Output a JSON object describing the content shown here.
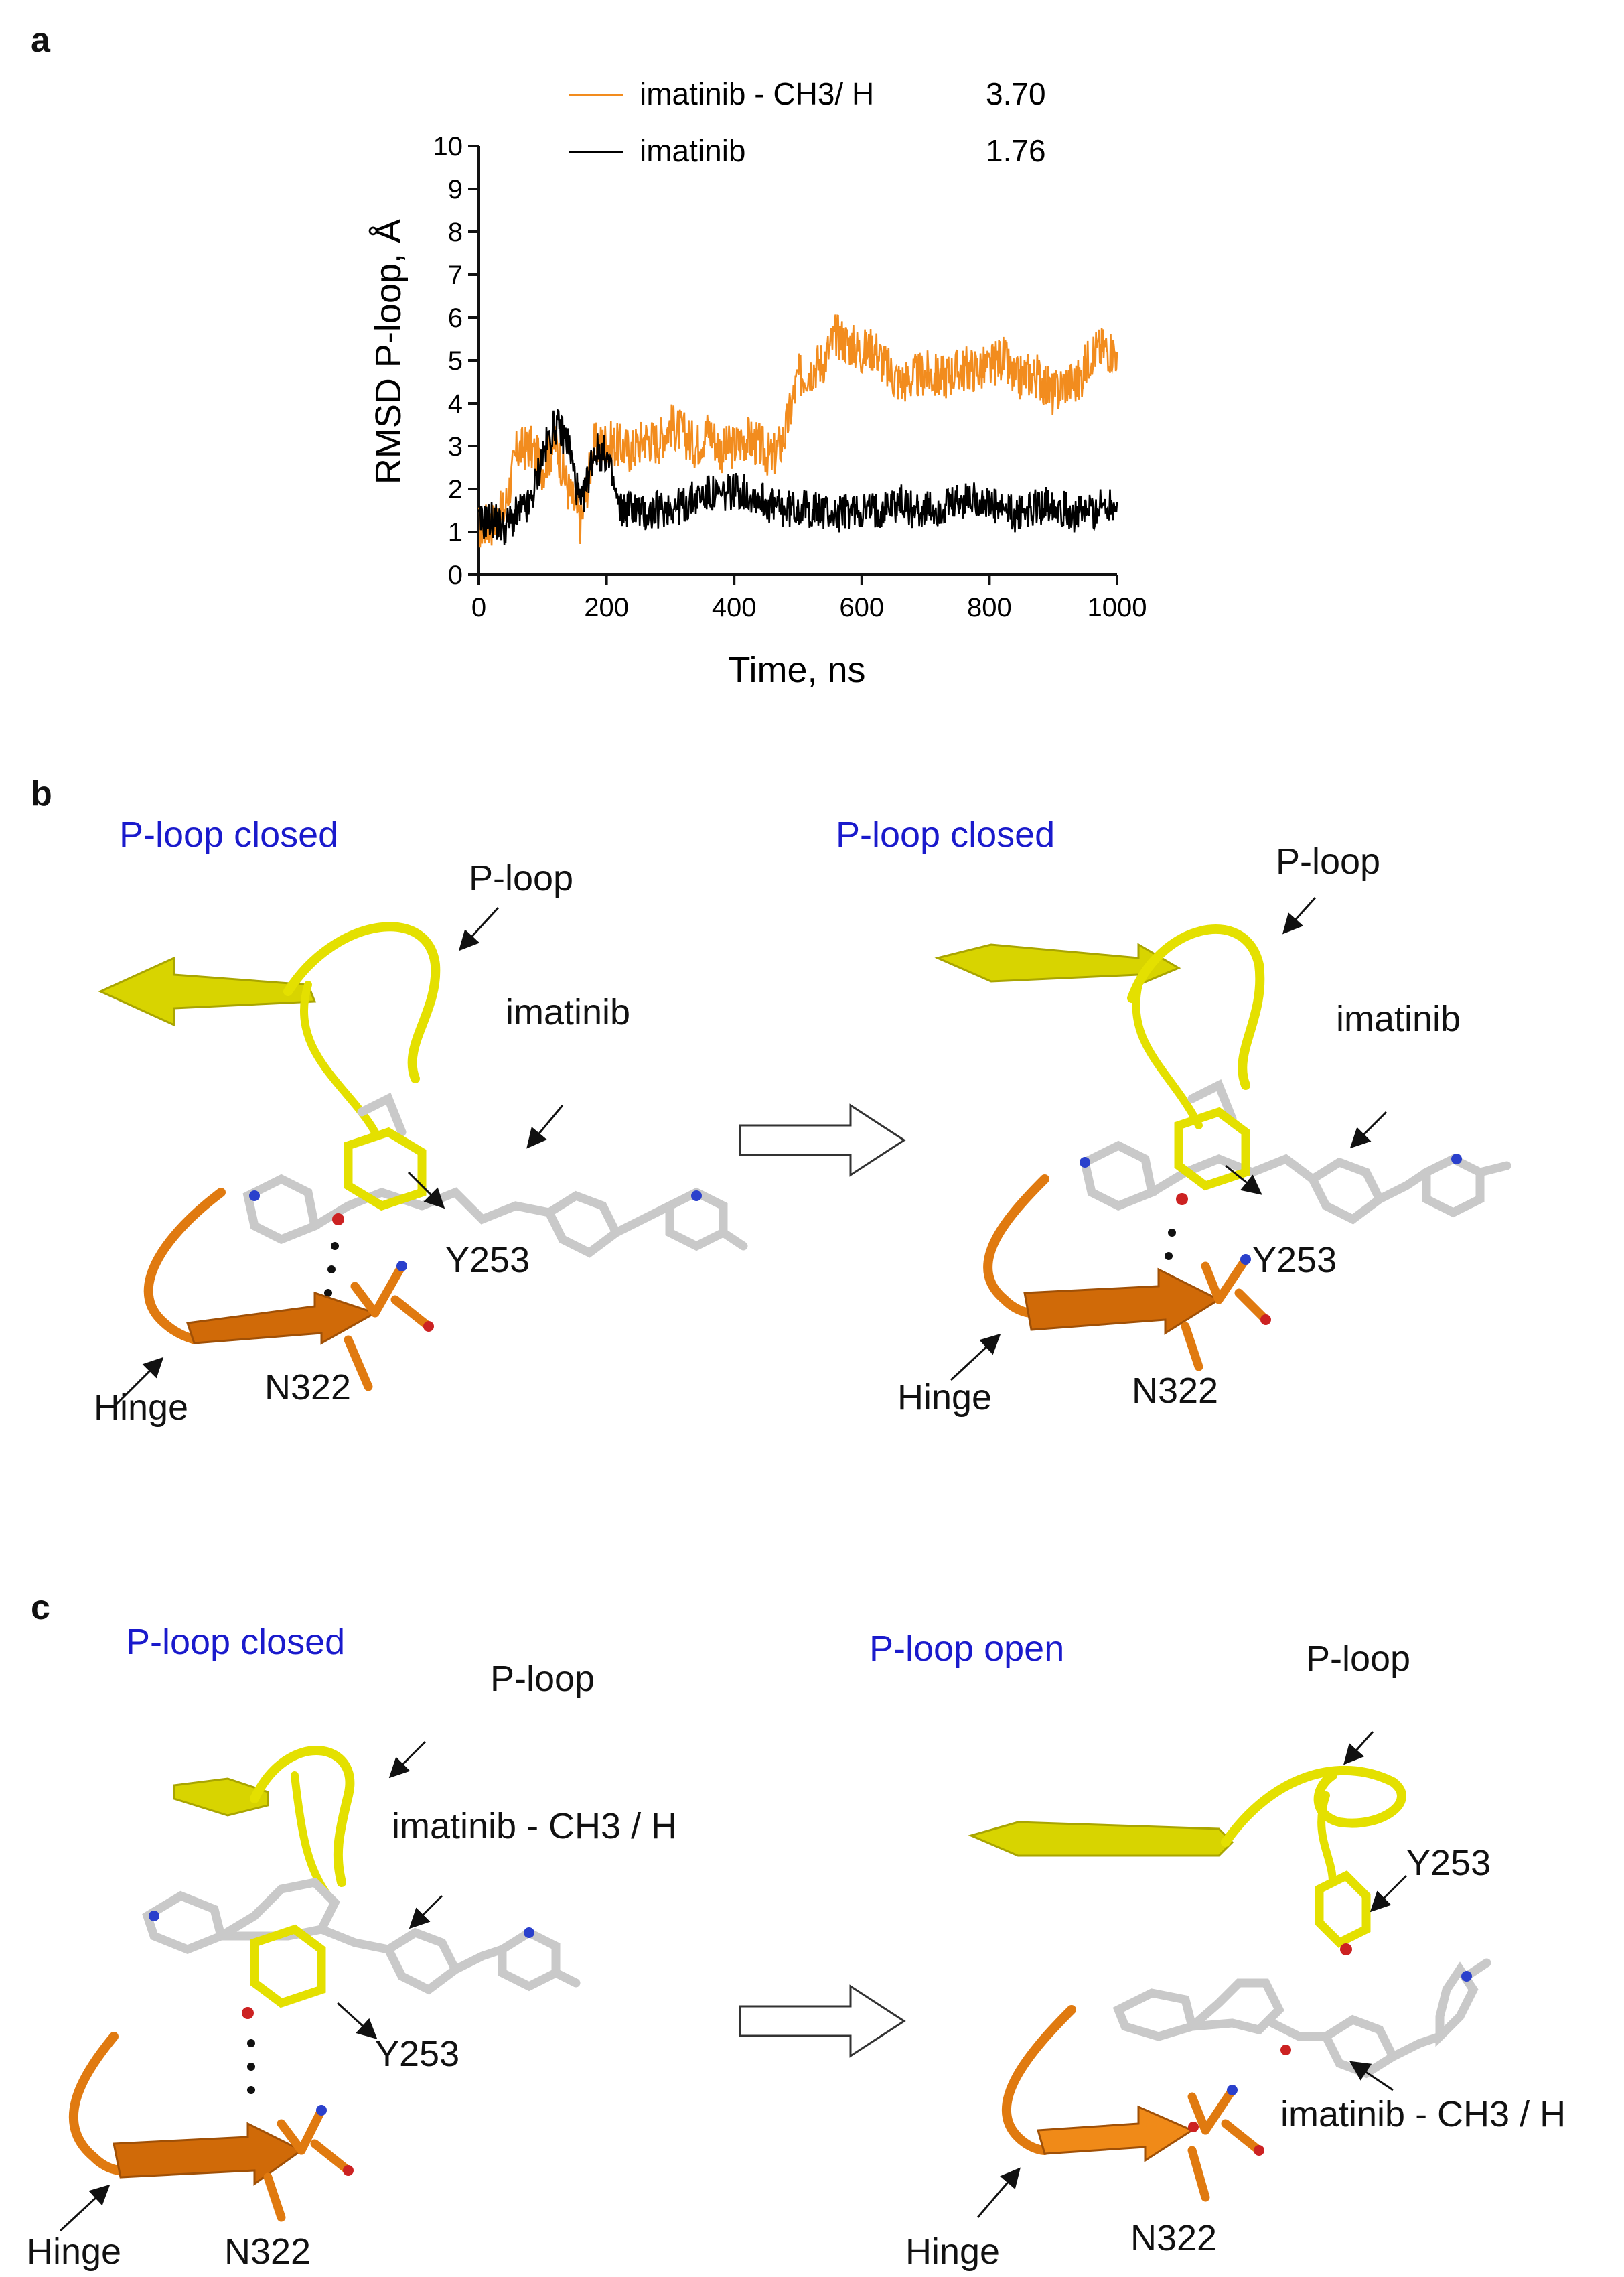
{
  "panels": {
    "a": {
      "letter": "a"
    },
    "b": {
      "letter": "b",
      "left": {
        "state": "P-loop closed",
        "ploop": "P-loop",
        "ligand": "imatinib",
        "tyr": "Y253",
        "hinge": "Hinge",
        "asn": "N322"
      },
      "right": {
        "state": "P-loop closed",
        "ploop": "P-loop",
        "ligand": "imatinib",
        "tyr": "Y253",
        "hinge": "Hinge",
        "asn": "N322"
      }
    },
    "c": {
      "letter": "c",
      "left": {
        "state": "P-loop closed",
        "ploop": "P-loop",
        "ligand": "imatinib - CH3 / H",
        "tyr": "Y253",
        "hinge": "Hinge",
        "asn": "N322"
      },
      "right": {
        "state": "P-loop open",
        "ploop": "P-loop",
        "ligand": "imatinib - CH3 / H",
        "tyr": "Y253",
        "hinge": "Hinge",
        "asn": "N322"
      }
    }
  },
  "colors": {
    "orange_series": "#f28c1e",
    "black_series": "#000000",
    "state_label": "#1a1acc",
    "yellow_loop": "#e4e000",
    "orange_hinge": "#e07a10"
  },
  "chart_data": {
    "type": "line",
    "xlabel": "Time, ns",
    "ylabel": "RMSD P-loop, Å",
    "xlim": [
      0,
      1000
    ],
    "ylim": [
      0,
      10
    ],
    "xticks": [
      0,
      200,
      400,
      600,
      800,
      1000
    ],
    "yticks": [
      0,
      1,
      2,
      3,
      4,
      5,
      6,
      7,
      8,
      9,
      10
    ],
    "legend_position": "top",
    "series": [
      {
        "name": "imatinib - CH3/ H",
        "legend_value": "3.70",
        "color": "#f28c1e",
        "x": [
          0,
          20,
          40,
          60,
          80,
          100,
          120,
          140,
          160,
          180,
          200,
          220,
          240,
          260,
          280,
          300,
          320,
          340,
          360,
          380,
          400,
          420,
          440,
          460,
          480,
          500,
          520,
          540,
          560,
          580,
          600,
          620,
          640,
          660,
          680,
          700,
          720,
          740,
          760,
          780,
          800,
          820,
          840,
          860,
          880,
          900,
          920,
          940,
          960,
          980,
          1000
        ],
        "y": [
          1.1,
          1.2,
          1.5,
          2.9,
          3.0,
          2.5,
          3.1,
          2.0,
          1.2,
          3.0,
          3.1,
          3.0,
          2.9,
          3.2,
          3.1,
          3.5,
          3.3,
          3.0,
          3.4,
          2.9,
          3.0,
          3.2,
          3.0,
          2.7,
          3.3,
          4.6,
          4.8,
          5.0,
          5.6,
          5.4,
          5.2,
          5.3,
          4.8,
          4.5,
          4.6,
          4.7,
          4.6,
          4.7,
          4.8,
          4.8,
          4.8,
          5.1,
          4.5,
          4.7,
          4.6,
          4.2,
          4.5,
          4.5,
          5.2,
          5.3,
          5.2
        ]
      },
      {
        "name": "imatinib",
        "legend_value": "1.76",
        "color": "#000000",
        "x": [
          0,
          20,
          40,
          60,
          80,
          100,
          120,
          140,
          160,
          180,
          200,
          220,
          240,
          260,
          280,
          300,
          320,
          340,
          360,
          380,
          400,
          420,
          440,
          460,
          480,
          500,
          520,
          540,
          560,
          580,
          600,
          620,
          640,
          660,
          680,
          700,
          720,
          740,
          760,
          780,
          800,
          820,
          840,
          860,
          880,
          900,
          920,
          940,
          960,
          980,
          1000
        ],
        "y": [
          1.2,
          1.3,
          1.1,
          1.4,
          1.6,
          2.8,
          3.5,
          3.1,
          1.5,
          2.9,
          2.8,
          1.5,
          1.6,
          1.4,
          1.5,
          1.6,
          1.6,
          1.8,
          1.9,
          1.8,
          2.0,
          1.9,
          1.8,
          1.6,
          1.5,
          1.6,
          1.5,
          1.5,
          1.4,
          1.5,
          1.5,
          1.5,
          1.6,
          1.7,
          1.5,
          1.5,
          1.5,
          1.6,
          1.7,
          1.8,
          1.6,
          1.5,
          1.4,
          1.5,
          1.6,
          1.7,
          1.5,
          1.4,
          1.5,
          1.6,
          1.7
        ]
      }
    ]
  }
}
